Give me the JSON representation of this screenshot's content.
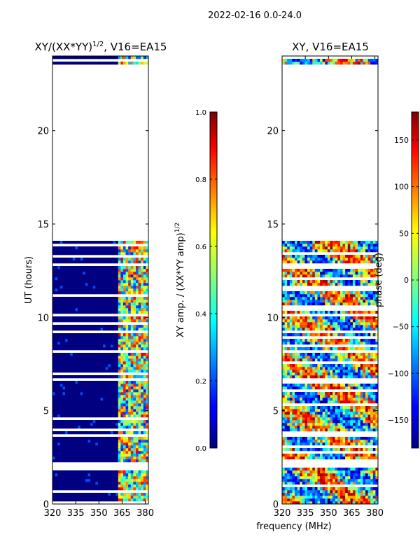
{
  "figure_title": "2022-02-16 0.0-24.0",
  "xlabel_shared": "frequency (MHz)",
  "chart_data": [
    {
      "type": "heatmap",
      "title": "XY/(XX*YY)^{1/2}, V16=EA15",
      "title_main": "XY/(XX*YY)",
      "title_exp": "1/2",
      "title_tail": ", V16=EA15",
      "xlabel": "",
      "ylabel": "UT (hours)",
      "xlim": [
        320,
        382
      ],
      "ylim": [
        0,
        24
      ],
      "xticks": [
        320,
        335,
        350,
        365,
        380
      ],
      "yticks": [
        0,
        5,
        10,
        15,
        20
      ],
      "colormap": "jet",
      "colorbar": {
        "label": "XY amp. / (XX*YY amp)^{1/2}",
        "label_main": "XY amp. / (XX*YY amp)",
        "label_exp": "1/2",
        "range": [
          0.0,
          1.0
        ],
        "ticks": [
          0.0,
          0.2,
          0.4,
          0.6,
          0.8,
          1.0
        ]
      },
      "data_gap_hours": [
        14.0,
        23.5
      ],
      "note": "mostly low amplitude (~0) below 362 MHz; bright bands (0.3-0.9) near 365-380 MHz"
    },
    {
      "type": "heatmap",
      "title": "XY, V16=EA15",
      "xlabel": "frequency (MHz)",
      "ylabel": "",
      "xlim": [
        320,
        382
      ],
      "ylim": [
        0,
        24
      ],
      "xticks": [
        320,
        335,
        350,
        365,
        380
      ],
      "yticks": [
        0,
        5,
        10,
        15,
        20
      ],
      "colormap": "jet",
      "colorbar": {
        "label": "phase (deg)",
        "range": [
          -180,
          180
        ],
        "ticks": [
          -150,
          -100,
          -50,
          0,
          50,
          100,
          150
        ]
      },
      "data_gap_hours": [
        14.0,
        23.5
      ],
      "note": "phase varies across full -180..180 range"
    }
  ]
}
